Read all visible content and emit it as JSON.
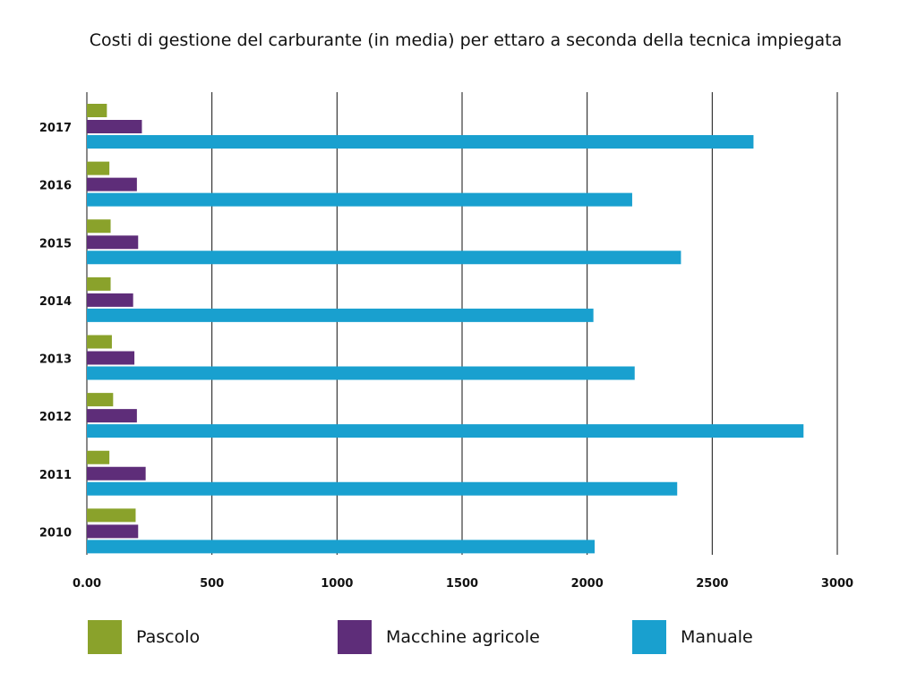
{
  "chart_data": {
    "type": "bar",
    "orientation": "horizontal",
    "title": "Costi di gestione del carburante (in media) per ettaro a seconda della tecnica impiegata",
    "categories": [
      "2017",
      "2016",
      "2015",
      "2014",
      "2013",
      "2012",
      "2011",
      "2010"
    ],
    "series": [
      {
        "name": "Pascolo",
        "color": "#8aa22b",
        "values": [
          80,
          90,
          95,
          95,
          100,
          105,
          90,
          195
        ]
      },
      {
        "name": "Macchine agricole",
        "color": "#5e2d79",
        "values": [
          220,
          200,
          205,
          185,
          190,
          200,
          235,
          205
        ]
      },
      {
        "name": "Manuale",
        "color": "#19a0cf",
        "values": [
          2665,
          2180,
          2375,
          2025,
          2190,
          2865,
          2360,
          2030
        ]
      }
    ],
    "x_ticks": [
      "0.00",
      "500",
      "1000",
      "1500",
      "2000",
      "2500",
      "3000"
    ],
    "xlim": [
      0,
      3000
    ],
    "grid": "vertical",
    "legend_position": "bottom"
  }
}
